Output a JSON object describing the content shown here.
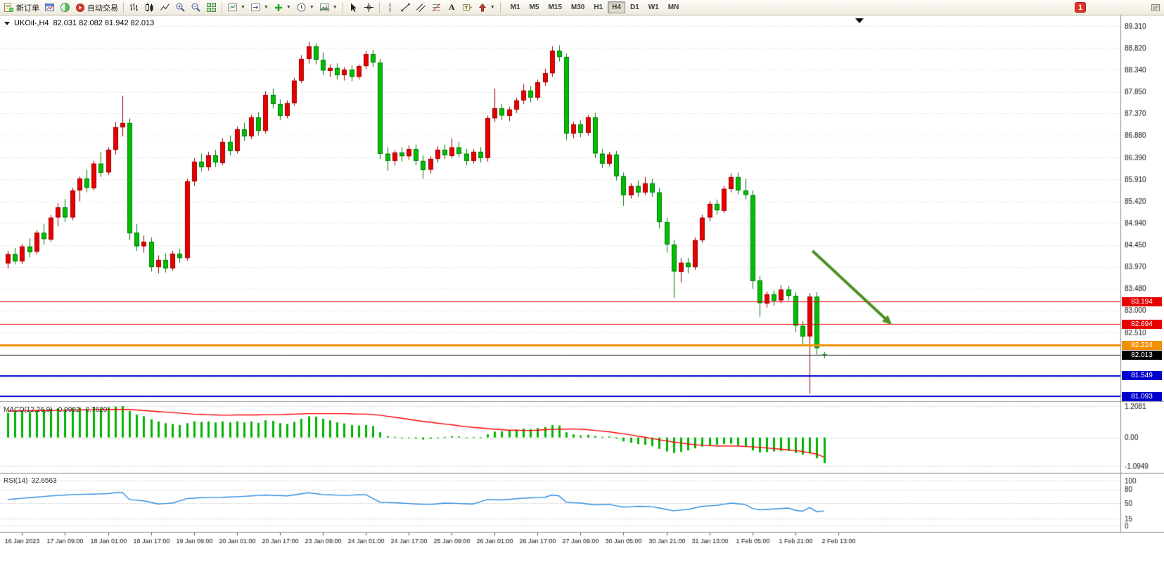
{
  "toolbar": {
    "new_order_label": "新订单",
    "autotrading_label": "自动交易",
    "timeframes": [
      "M1",
      "M5",
      "M15",
      "M30",
      "H1",
      "H4",
      "D1",
      "W1",
      "MN"
    ],
    "active_timeframe": "H4",
    "notification_count": "1"
  },
  "chart": {
    "symbol_period": "UKOil-,H4",
    "ohlc_line": "82.031 82.082 81.942 82.013",
    "open": "82.031",
    "high": "82.082",
    "low": "81.942",
    "close": "82.013"
  },
  "indicators": {
    "macd": {
      "label": "MACD(12,26,9)",
      "value": "-0.9902",
      "signal_value": "-0.7620"
    },
    "rsi": {
      "label": "RSI(14)",
      "value": "32.6563"
    }
  },
  "price_axis": {
    "labels": [
      "89.310",
      "88.820",
      "88.340",
      "87.850",
      "87.370",
      "86.880",
      "86.390",
      "85.910",
      "85.420",
      "84.940",
      "84.450",
      "83.970",
      "83.480",
      "83.000",
      "82.510"
    ],
    "extra_grid": [
      82.02,
      81.53,
      81.04
    ],
    "tags": [
      {
        "value": "83.194",
        "color": "#e60000"
      },
      {
        "value": "82.694",
        "color": "#e60000"
      },
      {
        "value": "82.224",
        "color": "#f09000"
      },
      {
        "value": "82.013",
        "color": "#000000"
      },
      {
        "value": "81.549",
        "color": "#0000cc"
      },
      {
        "value": "81.093",
        "color": "#0000cc"
      }
    ]
  },
  "time_axis": {
    "labels": [
      "16 Jan 2023",
      "17 Jan 09:00",
      "18 Jan 01:00",
      "18 Jan 17:00",
      "19 Jan 09:00",
      "20 Jan 01:00",
      "20 Jan 17:00",
      "23 Jan 09:00",
      "24 Jan 01:00",
      "24 Jan 17:00",
      "25 Jan 09:00",
      "26 Jan 01:00",
      "26 Jan 17:00",
      "27 Jan 09:00",
      "30 Jan 05:00",
      "30 Jan 21:00",
      "31 Jan 13:00",
      "1 Feb 05:00",
      "1 Feb 21:00",
      "2 Feb 13:00"
    ]
  },
  "macd_axis": {
    "labels": [
      {
        "text": "1.2081",
        "value": 1.2081
      },
      {
        "text": "0.00",
        "value": 0
      },
      {
        "text": "-1.0949",
        "value": -1.0949
      }
    ]
  },
  "rsi_axis": {
    "labels": [
      {
        "text": "100",
        "value": 100
      },
      {
        "text": "80",
        "value": 80
      },
      {
        "text": "50",
        "value": 50
      },
      {
        "text": "15",
        "value": 15
      },
      {
        "text": "0",
        "value": 0
      }
    ]
  },
  "chart_data": [
    {
      "type": "candlestick",
      "title": "UKOil- H4",
      "up_color": "#e80000",
      "down_color": "#00bf00",
      "ylim": [
        81.0,
        89.31
      ],
      "candles": [
        [
          84.05,
          84.32,
          83.93,
          84.25
        ],
        [
          84.25,
          84.38,
          84.02,
          84.1
        ],
        [
          84.1,
          84.47,
          84.03,
          84.42
        ],
        [
          84.42,
          84.6,
          84.18,
          84.3
        ],
        [
          84.3,
          84.78,
          84.24,
          84.72
        ],
        [
          84.72,
          84.92,
          84.46,
          84.58
        ],
        [
          84.58,
          85.12,
          84.52,
          85.06
        ],
        [
          85.06,
          85.38,
          84.86,
          85.28
        ],
        [
          85.28,
          85.47,
          84.96,
          85.06
        ],
        [
          85.06,
          85.72,
          85.0,
          85.66
        ],
        [
          85.66,
          85.97,
          85.42,
          85.92
        ],
        [
          85.92,
          86.12,
          85.62,
          85.72
        ],
        [
          85.72,
          86.32,
          85.66,
          86.26
        ],
        [
          86.26,
          86.52,
          85.96,
          86.06
        ],
        [
          86.06,
          86.62,
          86.0,
          86.56
        ],
        [
          86.56,
          87.18,
          86.46,
          87.06
        ],
        [
          87.06,
          87.76,
          86.86,
          87.16
        ],
        [
          87.16,
          87.26,
          84.56,
          84.72
        ],
        [
          84.72,
          84.92,
          84.32,
          84.42
        ],
        [
          84.42,
          84.66,
          84.28,
          84.52
        ],
        [
          84.52,
          84.62,
          83.86,
          83.96
        ],
        [
          83.96,
          84.22,
          83.82,
          84.12
        ],
        [
          84.12,
          84.26,
          83.84,
          83.94
        ],
        [
          83.94,
          84.32,
          83.88,
          84.26
        ],
        [
          84.26,
          84.36,
          84.06,
          84.16
        ],
        [
          84.16,
          85.92,
          84.1,
          85.86
        ],
        [
          85.86,
          86.38,
          85.76,
          86.3
        ],
        [
          86.3,
          86.48,
          86.08,
          86.18
        ],
        [
          86.18,
          86.52,
          86.1,
          86.44
        ],
        [
          86.44,
          86.56,
          86.18,
          86.28
        ],
        [
          86.28,
          86.82,
          86.22,
          86.74
        ],
        [
          86.74,
          86.88,
          86.44,
          86.54
        ],
        [
          86.54,
          87.08,
          86.48,
          87.02
        ],
        [
          87.02,
          87.16,
          86.76,
          86.86
        ],
        [
          86.86,
          87.34,
          86.8,
          87.28
        ],
        [
          87.28,
          87.4,
          86.88,
          86.98
        ],
        [
          86.98,
          87.86,
          86.92,
          87.78
        ],
        [
          87.78,
          87.92,
          87.48,
          87.58
        ],
        [
          87.58,
          87.68,
          87.22,
          87.32
        ],
        [
          87.32,
          87.66,
          87.26,
          87.6
        ],
        [
          87.6,
          88.16,
          87.54,
          88.1
        ],
        [
          88.1,
          88.66,
          88.04,
          88.58
        ],
        [
          88.58,
          88.96,
          88.48,
          88.86
        ],
        [
          88.86,
          88.93,
          88.46,
          88.56
        ],
        [
          88.56,
          88.72,
          88.22,
          88.32
        ],
        [
          88.32,
          88.46,
          88.18,
          88.38
        ],
        [
          88.38,
          88.48,
          88.12,
          88.22
        ],
        [
          88.22,
          88.4,
          88.1,
          88.34
        ],
        [
          88.34,
          88.44,
          88.08,
          88.18
        ],
        [
          88.18,
          88.46,
          88.12,
          88.42
        ],
        [
          88.42,
          88.76,
          88.36,
          88.68
        ],
        [
          88.68,
          88.78,
          88.4,
          88.5
        ],
        [
          88.5,
          88.58,
          86.36,
          86.48
        ],
        [
          86.48,
          86.62,
          86.1,
          86.32
        ],
        [
          86.32,
          86.56,
          86.22,
          86.5
        ],
        [
          86.5,
          86.62,
          86.3,
          86.42
        ],
        [
          86.42,
          86.66,
          86.34,
          86.58
        ],
        [
          86.58,
          86.68,
          86.22,
          86.32
        ],
        [
          86.32,
          86.44,
          85.92,
          86.12
        ],
        [
          86.12,
          86.42,
          86.04,
          86.36
        ],
        [
          86.36,
          86.64,
          86.28,
          86.56
        ],
        [
          86.56,
          86.68,
          86.36,
          86.44
        ],
        [
          86.44,
          86.82,
          86.38,
          86.62
        ],
        [
          86.62,
          86.74,
          86.4,
          86.48
        ],
        [
          86.48,
          86.58,
          86.22,
          86.32
        ],
        [
          86.32,
          86.58,
          86.26,
          86.52
        ],
        [
          86.52,
          86.62,
          86.28,
          86.38
        ],
        [
          86.38,
          87.32,
          86.3,
          87.26
        ],
        [
          87.26,
          87.92,
          87.18,
          87.48
        ],
        [
          87.48,
          87.58,
          87.22,
          87.32
        ],
        [
          87.32,
          87.52,
          87.2,
          87.46
        ],
        [
          87.46,
          87.72,
          87.38,
          87.66
        ],
        [
          87.66,
          88.02,
          87.58,
          87.88
        ],
        [
          87.88,
          87.98,
          87.62,
          87.72
        ],
        [
          87.72,
          88.12,
          87.66,
          88.06
        ],
        [
          88.06,
          88.36,
          87.98,
          88.26
        ],
        [
          88.26,
          88.86,
          88.18,
          88.76
        ],
        [
          88.76,
          88.88,
          88.52,
          88.62
        ],
        [
          88.62,
          88.7,
          86.78,
          86.92
        ],
        [
          86.92,
          87.18,
          86.82,
          87.12
        ],
        [
          87.12,
          87.22,
          86.84,
          86.94
        ],
        [
          86.94,
          87.34,
          86.88,
          87.28
        ],
        [
          87.28,
          87.38,
          86.38,
          86.48
        ],
        [
          86.48,
          86.58,
          86.16,
          86.26
        ],
        [
          86.26,
          86.52,
          86.2,
          86.46
        ],
        [
          86.46,
          86.54,
          85.88,
          85.98
        ],
        [
          85.98,
          86.06,
          85.32,
          85.56
        ],
        [
          85.56,
          85.82,
          85.48,
          85.76
        ],
        [
          85.76,
          85.88,
          85.52,
          85.62
        ],
        [
          85.62,
          85.96,
          85.56,
          85.82
        ],
        [
          85.82,
          85.92,
          85.52,
          85.62
        ],
        [
          85.62,
          85.72,
          84.82,
          84.96
        ],
        [
          84.96,
          85.06,
          84.28,
          84.46
        ],
        [
          84.46,
          84.56,
          83.28,
          83.86
        ],
        [
          83.86,
          84.16,
          83.62,
          84.06
        ],
        [
          84.06,
          84.16,
          83.82,
          83.96
        ],
        [
          83.96,
          84.62,
          83.9,
          84.56
        ],
        [
          84.56,
          85.12,
          84.5,
          85.06
        ],
        [
          85.06,
          85.42,
          84.98,
          85.36
        ],
        [
          85.36,
          85.46,
          85.12,
          85.22
        ],
        [
          85.22,
          85.76,
          85.16,
          85.7
        ],
        [
          85.7,
          86.04,
          85.62,
          85.96
        ],
        [
          85.96,
          86.06,
          85.58,
          85.66
        ],
        [
          85.66,
          85.92,
          85.46,
          85.56
        ],
        [
          85.56,
          85.66,
          83.48,
          83.66
        ],
        [
          83.66,
          83.76,
          82.86,
          83.16
        ],
        [
          83.16,
          83.42,
          83.06,
          83.36
        ],
        [
          83.36,
          83.44,
          83.1,
          83.22
        ],
        [
          83.22,
          83.56,
          83.16,
          83.46
        ],
        [
          83.46,
          83.54,
          83.22,
          83.32
        ],
        [
          83.32,
          83.4,
          82.52,
          82.66
        ],
        [
          82.66,
          82.76,
          82.22,
          82.42
        ],
        [
          82.42,
          83.38,
          81.15,
          83.3
        ],
        [
          83.3,
          83.4,
          82.02,
          82.16
        ],
        [
          82.03,
          82.08,
          81.94,
          82.01
        ]
      ],
      "hlines": [
        {
          "price": 83.194,
          "color": "#e60000",
          "width": 1
        },
        {
          "price": 82.694,
          "color": "#e60000",
          "width": 1
        },
        {
          "price": 82.224,
          "color": "#f09000",
          "width": 3
        },
        {
          "price": 82.013,
          "color": "#1a1a1a",
          "width": 1
        },
        {
          "price": 81.549,
          "color": "#0000cc",
          "width": 2
        },
        {
          "price": 81.093,
          "color": "#0000cc",
          "width": 2
        }
      ],
      "trend_arrow": {
        "from_index": 112.4,
        "from_price": 84.32,
        "to_index": 123.5,
        "to_price": 82.68,
        "color": "#4e8f23"
      }
    },
    {
      "type": "bar",
      "name": "MACD(12,26,9) histogram",
      "color": "#00b400",
      "ylim": [
        -1.18,
        1.27
      ],
      "values": [
        0.95,
        1.0,
        1.02,
        0.98,
        1.05,
        1.08,
        1.1,
        1.12,
        1.08,
        1.12,
        1.15,
        1.1,
        1.16,
        1.12,
        1.17,
        1.19,
        1.21,
        1.02,
        0.88,
        0.82,
        0.7,
        0.62,
        0.55,
        0.52,
        0.48,
        0.55,
        0.62,
        0.6,
        0.62,
        0.58,
        0.62,
        0.58,
        0.62,
        0.58,
        0.62,
        0.56,
        0.66,
        0.64,
        0.55,
        0.52,
        0.6,
        0.72,
        0.82,
        0.8,
        0.72,
        0.66,
        0.58,
        0.54,
        0.48,
        0.46,
        0.48,
        0.44,
        0.2,
        0.05,
        0.02,
        -0.02,
        0.0,
        -0.04,
        -0.08,
        -0.05,
        0.0,
        0.02,
        0.05,
        0.04,
        0.0,
        0.02,
        0.0,
        0.12,
        0.22,
        0.24,
        0.26,
        0.3,
        0.34,
        0.32,
        0.36,
        0.4,
        0.48,
        0.46,
        0.2,
        0.12,
        0.08,
        0.1,
        0.06,
        0.02,
        0.04,
        -0.05,
        -0.15,
        -0.2,
        -0.26,
        -0.28,
        -0.34,
        -0.44,
        -0.54,
        -0.6,
        -0.56,
        -0.5,
        -0.42,
        -0.35,
        -0.3,
        -0.28,
        -0.25,
        -0.24,
        -0.3,
        -0.35,
        -0.5,
        -0.58,
        -0.56,
        -0.54,
        -0.52,
        -0.52,
        -0.6,
        -0.66,
        -0.62,
        -0.8,
        -0.99
      ],
      "signal_line": {
        "color": "#ff0000",
        "values": [
          1.02,
          1.02,
          1.03,
          1.03,
          1.04,
          1.04,
          1.04,
          1.05,
          1.05,
          1.06,
          1.06,
          1.07,
          1.07,
          1.08,
          1.08,
          1.08,
          1.08,
          1.08,
          1.06,
          1.04,
          1.02,
          1.0,
          0.98,
          0.96,
          0.94,
          0.92,
          0.9,
          0.89,
          0.88,
          0.87,
          0.86,
          0.86,
          0.87,
          0.87,
          0.87,
          0.87,
          0.88,
          0.88,
          0.88,
          0.89,
          0.9,
          0.91,
          0.92,
          0.92,
          0.92,
          0.92,
          0.92,
          0.92,
          0.91,
          0.9,
          0.9,
          0.88,
          0.86,
          0.82,
          0.78,
          0.74,
          0.7,
          0.66,
          0.62,
          0.59,
          0.55,
          0.52,
          0.49,
          0.45,
          0.42,
          0.39,
          0.37,
          0.34,
          0.32,
          0.3,
          0.28,
          0.28,
          0.27,
          0.27,
          0.28,
          0.3,
          0.31,
          0.32,
          0.32,
          0.33,
          0.32,
          0.3,
          0.27,
          0.25,
          0.22,
          0.18,
          0.14,
          0.1,
          0.05,
          0.01,
          -0.04,
          -0.09,
          -0.13,
          -0.18,
          -0.21,
          -0.25,
          -0.28,
          -0.3,
          -0.31,
          -0.33,
          -0.33,
          -0.33,
          -0.33,
          -0.35,
          -0.36,
          -0.38,
          -0.4,
          -0.43,
          -0.45,
          -0.48,
          -0.51,
          -0.54,
          -0.59,
          -0.64,
          -0.76
        ]
      }
    },
    {
      "type": "line",
      "name": "RSI(14)",
      "color": "#2e8ce0",
      "ylim": [
        0,
        100
      ],
      "levels": [
        100,
        80,
        50,
        15,
        0
      ],
      "values": [
        58.0,
        59.3,
        60.7,
        62.0,
        63.3,
        64.7,
        66.0,
        67.0,
        68.0,
        69.0,
        69.3,
        69.7,
        70.0,
        70.5,
        71.0,
        73.0,
        74.0,
        58.0,
        56.5,
        55.0,
        51.5,
        48.0,
        49.0,
        50.0,
        55.0,
        60.0,
        61.0,
        62.0,
        62.3,
        62.7,
        63.0,
        63.7,
        64.3,
        65.0,
        66.0,
        67.0,
        68.0,
        67.3,
        66.7,
        66.0,
        68.3,
        70.7,
        73.0,
        71.0,
        69.0,
        68.3,
        67.7,
        67.0,
        67.7,
        68.3,
        69.0,
        60.5,
        52.0,
        51.3,
        50.7,
        50.0,
        49.0,
        48.0,
        47.5,
        47.0,
        48.5,
        50.0,
        49.5,
        49.0,
        48.5,
        48.0,
        53.0,
        58.0,
        57.5,
        57.0,
        58.3,
        59.7,
        61.0,
        61.7,
        62.3,
        63.0,
        68.0,
        66.0,
        52.0,
        51.0,
        50.0,
        48.0,
        46.0,
        46.5,
        47.0,
        44.0,
        41.0,
        42.0,
        43.0,
        42.5,
        42.0,
        39.0,
        36.0,
        33.0,
        34.5,
        36.0,
        39.5,
        43.0,
        44.0,
        45.0,
        47.5,
        50.0,
        48.5,
        47.0,
        38.0,
        35.0,
        36.0,
        37.0,
        38.0,
        39.0,
        34.0,
        32.0,
        40.0,
        31.0,
        32.7
      ]
    }
  ]
}
